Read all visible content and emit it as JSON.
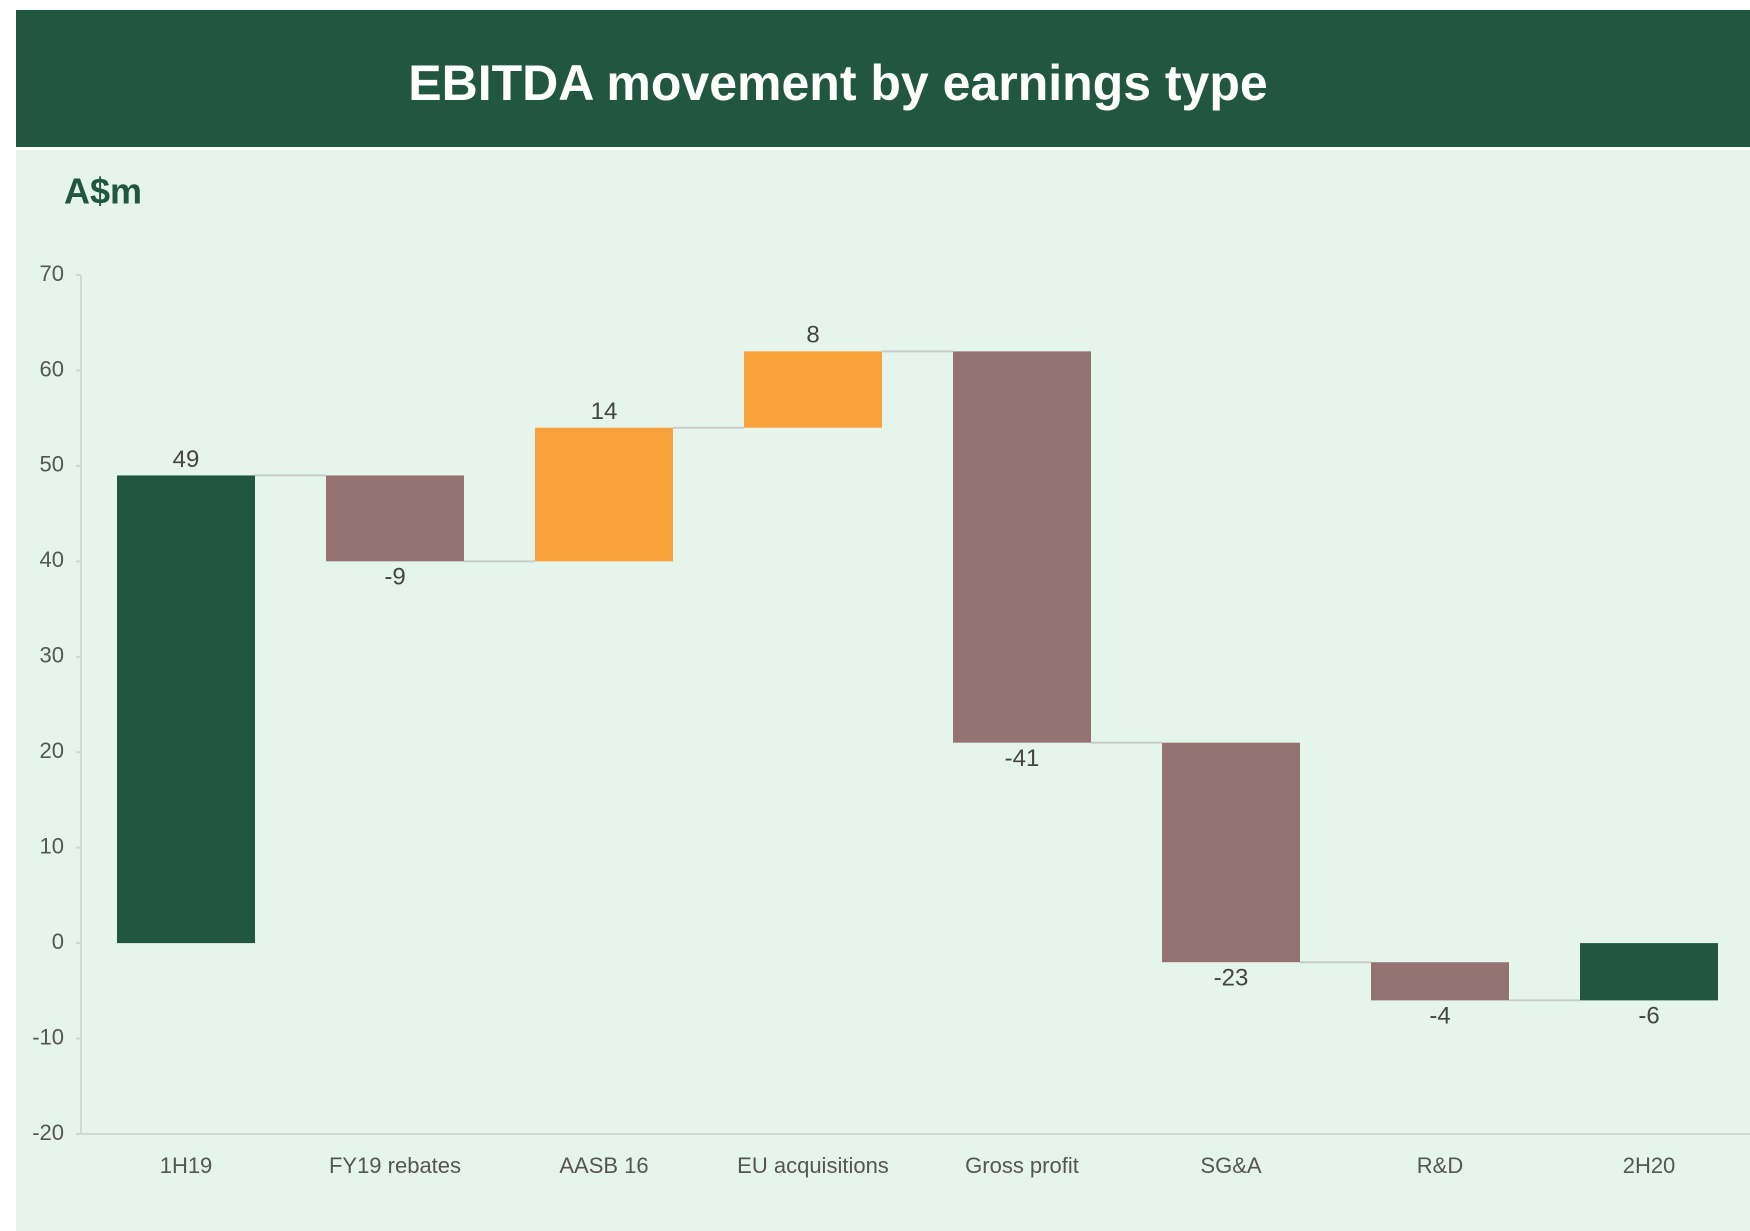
{
  "chart_data": {
    "type": "waterfall",
    "title": "EBITDA movement by earnings type",
    "y_label": "A$m",
    "categories": [
      "1H19",
      "FY19 rebates",
      "AASB 16",
      "EU acquisitions",
      "Gross profit",
      "SG&A",
      "R&D",
      "2H20"
    ],
    "values": [
      49,
      -9,
      14,
      8,
      -41,
      -23,
      -4,
      -6
    ],
    "measure": [
      "total",
      "relative",
      "relative",
      "relative",
      "relative",
      "relative",
      "relative",
      "total"
    ],
    "colors": {
      "total": "#215640",
      "increase": "#f9a23b",
      "decrease": "#967373"
    },
    "ylim": [
      -20,
      70
    ],
    "yticks": [
      -20,
      -10,
      0,
      10,
      20,
      30,
      40,
      50,
      60,
      70
    ],
    "grid": false
  }
}
